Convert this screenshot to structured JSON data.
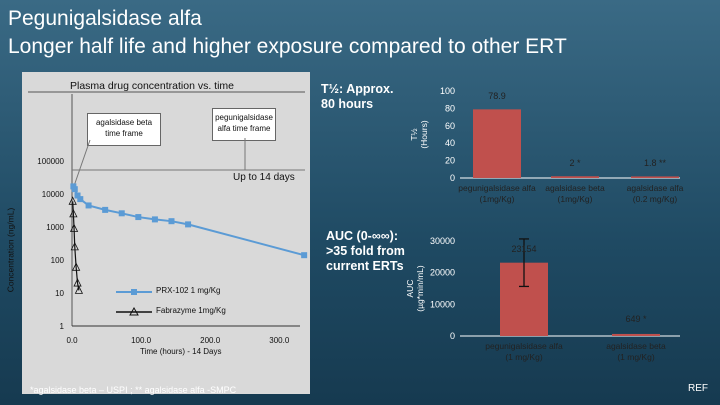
{
  "slide": {
    "title_line1": "Pegunigalsidase alfa",
    "title_line2": "Longer half life and higher exposure compared to other ERT",
    "footnote": "*agalsidase beta – USPI ; ** agalsidase alfa -SMPC",
    "ref_label": "REF",
    "colors": {
      "background": "#2a5670",
      "bar": "#c0504d",
      "prx_line": "#5b9bd5",
      "panel": "#d9d9d9"
    }
  },
  "left_chart": {
    "title": "Plasma drug concentration  vs. time",
    "ylabel": "Concentration (ng/mL)",
    "xlabel": "Time (hours) - 14 Days",
    "y_ticks": [
      "100000",
      "10000",
      "1000",
      "100",
      "10",
      "1"
    ],
    "x_ticks": [
      "0.0",
      "100.0",
      "200.0",
      "300.0"
    ],
    "box_beta": "agalsidase beta time frame",
    "box_peg": "pegunigalsidase alfa time frame",
    "up_to": "Up to 14 days",
    "legend_prx": "PRX-102 1 mg/Kg",
    "legend_fab": "Fabrazyme 1mg/Kg"
  },
  "annotations": {
    "half_life": "T½: Approx. 80 hours",
    "auc": "AUC (0-∞∞): >35 fold from current ERTs"
  },
  "chart_data": [
    {
      "type": "line",
      "title": "Plasma drug concentration  vs. time",
      "xlabel": "Time (hours) - 14 Days",
      "ylabel": "Concentration (ng/mL)",
      "y_scale": "log",
      "xlim": [
        0,
        330
      ],
      "ylim": [
        1,
        100000
      ],
      "series": [
        {
          "name": "PRX-102 1 mg/Kg",
          "color": "#5b9bd5",
          "x": [
            2,
            4,
            8,
            12,
            24,
            48,
            72,
            96,
            120,
            144,
            168,
            336
          ],
          "y": [
            17000,
            14000,
            9000,
            7000,
            4500,
            3300,
            2600,
            2000,
            1700,
            1500,
            1200,
            140
          ]
        },
        {
          "name": "Fabrazyme 1mg/Kg",
          "color": "#111111",
          "x": [
            1,
            2,
            3,
            4,
            6,
            8,
            10
          ],
          "y": [
            6000,
            2500,
            900,
            250,
            60,
            20,
            12
          ]
        }
      ]
    },
    {
      "type": "bar",
      "ylabel": "T½ (Hours)",
      "ylim": [
        0,
        100
      ],
      "y_ticks": [
        "100",
        "80",
        "60",
        "40",
        "20",
        "0"
      ],
      "categories": [
        "pegunigalsidase alfa (1mg/Kg)",
        "agalsidase beta (1mg/Kg)",
        "agalsidase alfa (0.2 mg/Kg)"
      ],
      "values": [
        78.9,
        2,
        1.8
      ],
      "data_labels": [
        "78.9",
        "2 *",
        "1.8 **"
      ]
    },
    {
      "type": "bar",
      "ylabel": "AUC (µg*min/mL)",
      "ylim": [
        0,
        30000
      ],
      "y_ticks": [
        "30000",
        "20000",
        "10000",
        "0"
      ],
      "categories": [
        "pegunigalsidase alfa (1 mg/Kg)",
        "agalsidase beta (1 mg/Kg)"
      ],
      "values": [
        23154,
        649
      ],
      "data_labels": [
        "23154",
        "649 *"
      ]
    }
  ]
}
